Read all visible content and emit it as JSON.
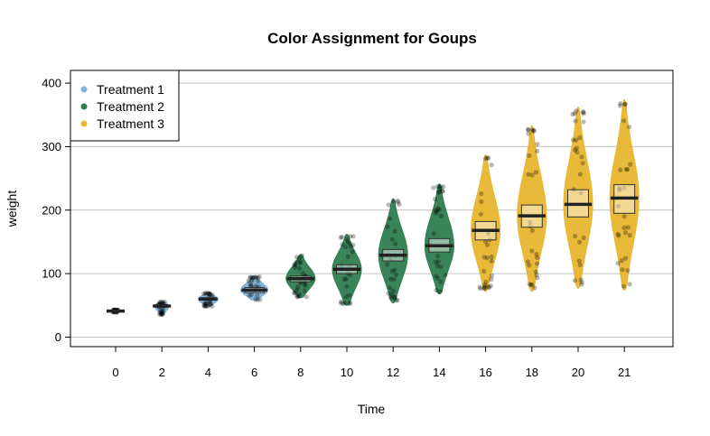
{
  "chart_data": {
    "type": "violin",
    "title": "Color Assignment for Goups",
    "xlabel": "Time",
    "ylabel": "weight",
    "ylim": [
      -15,
      420
    ],
    "yticks": [
      0,
      100,
      200,
      300,
      400
    ],
    "grid": "horizontal",
    "legend_position": "top-left",
    "categories": [
      "0",
      "2",
      "4",
      "6",
      "8",
      "10",
      "12",
      "14",
      "16",
      "18",
      "20",
      "21"
    ],
    "legend": [
      {
        "label": "Treatment 1",
        "color": "#7FB2D5"
      },
      {
        "label": "Treatment 2",
        "color": "#2E7D4F"
      },
      {
        "label": "Treatment 3",
        "color": "#E8B52E"
      }
    ],
    "groups": [
      {
        "time": "0",
        "series": "Treatment 1",
        "color": "#7FB2D5",
        "min": 39,
        "max": 43,
        "mean": 41,
        "ci": [
          40,
          42
        ],
        "width": 0.3
      },
      {
        "time": "2",
        "series": "Treatment 1",
        "color": "#7FB2D5",
        "min": 35,
        "max": 56,
        "mean": 49,
        "ci": [
          47,
          51
        ],
        "width": 0.4
      },
      {
        "time": "4",
        "series": "Treatment 1",
        "color": "#7FB2D5",
        "min": 48,
        "max": 70,
        "mean": 60,
        "ci": [
          58,
          62
        ],
        "width": 0.55
      },
      {
        "time": "6",
        "series": "Treatment 1",
        "color": "#7FB2D5",
        "min": 58,
        "max": 96,
        "mean": 74,
        "ci": [
          70,
          78
        ],
        "width": 0.75
      },
      {
        "time": "8",
        "series": "Treatment 2",
        "color": "#2E7D4F",
        "min": 62,
        "max": 130,
        "mean": 92,
        "ci": [
          87,
          96
        ],
        "width": 0.8
      },
      {
        "time": "10",
        "series": "Treatment 2",
        "color": "#2E7D4F",
        "min": 50,
        "max": 162,
        "mean": 107,
        "ci": [
          100,
          114
        ],
        "width": 0.8
      },
      {
        "time": "12",
        "series": "Treatment 2",
        "color": "#2E7D4F",
        "min": 54,
        "max": 218,
        "mean": 129,
        "ci": [
          120,
          138
        ],
        "width": 0.8
      },
      {
        "time": "14",
        "series": "Treatment 2",
        "color": "#2E7D4F",
        "min": 68,
        "max": 241,
        "mean": 144,
        "ci": [
          134,
          155
        ],
        "width": 0.8
      },
      {
        "time": "16",
        "series": "Treatment 3",
        "color": "#E8B52E",
        "min": 72,
        "max": 287,
        "mean": 168,
        "ci": [
          153,
          182
        ],
        "width": 0.8
      },
      {
        "time": "18",
        "series": "Treatment 3",
        "color": "#E8B52E",
        "min": 72,
        "max": 333,
        "mean": 191,
        "ci": [
          173,
          208
        ],
        "width": 0.8
      },
      {
        "time": "20",
        "series": "Treatment 3",
        "color": "#E8B52E",
        "min": 77,
        "max": 362,
        "mean": 209,
        "ci": [
          189,
          232
        ],
        "width": 0.8
      },
      {
        "time": "21",
        "series": "Treatment 3",
        "color": "#E8B52E",
        "min": 74,
        "max": 374,
        "mean": 219,
        "ci": [
          195,
          240
        ],
        "width": 0.8
      }
    ]
  }
}
